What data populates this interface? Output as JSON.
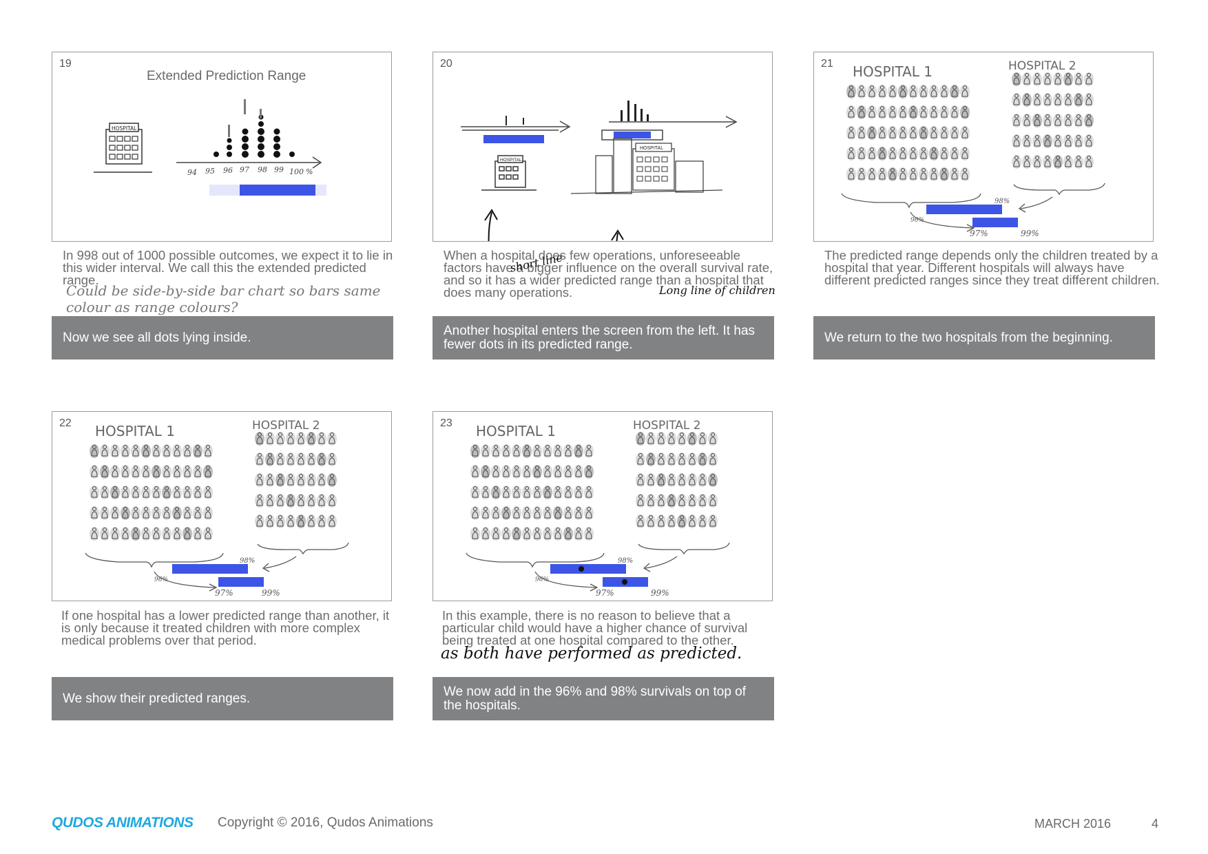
{
  "panels": [
    {
      "number": "19",
      "title": "Extended Prediction Range",
      "building_sign": "HOSPITAL",
      "axis_ticks": [
        "94",
        "95",
        "96",
        "97",
        "98",
        "99",
        "100",
        "%"
      ],
      "description": "In 998 out of 1000 possible outcomes, we expect it to lie in this wider interval. We call this the extended predicted range.",
      "note": "Could be side-by-side bar chart so bars same colour as range colours?",
      "caption": "Now we see all dots lying inside."
    },
    {
      "number": "20",
      "building_sign": "HOSPITAL",
      "building_sign_2": "HOSPITAL",
      "description": "When a hospital does few operations, unforeseeable factors have a bigger influence on the overall survival rate, and so it has a wider predicted range than a hospital that does many operations.",
      "note_1": "short line",
      "note_2": "Long line of children",
      "caption": "Another hospital enters the screen from the left. It has fewer dots in its predicted range."
    },
    {
      "number": "21",
      "hospital_1": "HOSPITAL 1",
      "hospital_2": "HOSPITAL 2",
      "pct_96": "96%",
      "pct_97": "97%",
      "pct_98": "98%",
      "pct_99": "99%",
      "description": "The predicted range depends only the children treated by a hospital that year. Different hospitals will always have different predicted ranges since they treat different children.",
      "caption": "We return to the two hospitals from the beginning."
    },
    {
      "number": "22",
      "hospital_1": "HOSPITAL 1",
      "hospital_2": "HOSPITAL 2",
      "pct_96": "96%",
      "pct_97": "97%",
      "pct_98": "98%",
      "pct_99": "99%",
      "description": "If one hospital has a lower predicted range than another, it is only because it treated children with more complex medical problems over that period.",
      "caption": "We show their predicted ranges."
    },
    {
      "number": "23",
      "hospital_1": "HOSPITAL 1",
      "hospital_2": "HOSPITAL 2",
      "pct_96": "96%",
      "pct_97": "97%",
      "pct_98": "98%",
      "pct_99": "99%",
      "description": "In this example, there is no reason to believe that a particular child would have a higher chance of survival being treated at one hospital compared to the other.",
      "note": "as both have performed as predicted.",
      "caption": "We now add in the 96% and 98% survivals on top of the hospitals."
    }
  ],
  "footer": {
    "logo": "QUDOS ANIMATIONS",
    "copyright": "Copyright © 2016, Qudos Animations",
    "date": "MARCH 2016",
    "page": "4"
  },
  "colors": {
    "bar_blue": "#3d55e6",
    "bar_light": "#e4e7fb",
    "caption_grey": "#808284",
    "logo_blue": "#1fa8e0"
  }
}
